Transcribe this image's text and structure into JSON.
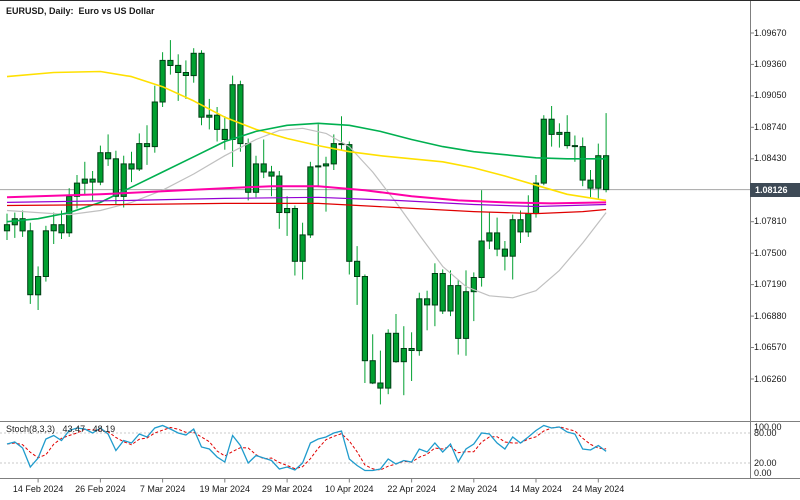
{
  "header": {
    "title": "EURUSD, Daily:  Euro vs US Dollar"
  },
  "price_axis": {
    "labels": [
      "1.09670",
      "1.09360",
      "1.09050",
      "1.08740",
      "1.08430",
      "1.07810",
      "1.07500",
      "1.07190",
      "1.06880",
      "1.06570",
      "1.06260"
    ],
    "current_price": "1.08126"
  },
  "stochastic": {
    "label": "Stoch(8,3,3)",
    "main_value": "43.47",
    "signal_value": "48.19",
    "axis_labels": [
      "100.00",
      "80.00",
      "20.00",
      "0.00"
    ],
    "levels": [
      80,
      20
    ],
    "range": [
      0,
      100
    ],
    "main_color": "#1F9BCC",
    "signal_color": "#E00000"
  },
  "date_axis": {
    "labels": [
      "14 Feb 2024",
      "26 Feb 2024",
      "7 Mar 2024",
      "19 Mar 2024",
      "29 Mar 2024",
      "10 Apr 2024",
      "22 Apr 2024",
      "2 May 2024",
      "14 May 2024",
      "24 May 2024"
    ],
    "tick_indices": [
      4,
      12,
      20,
      28,
      36,
      44,
      52,
      60,
      68,
      76
    ]
  },
  "colors": {
    "candle_fill": "#00A030",
    "candle_border": "#003d14",
    "candle_wick": "#00A030",
    "price_line": "#A6A6A6",
    "separator": "#7F7F7F",
    "level_line": "#C8C8C8",
    "badge_bg": "#3E4A56",
    "badge_text": "#FFFFFF"
  },
  "chart_data": {
    "type": "candlestick",
    "symbol": "EURUSD",
    "timeframe": "Daily",
    "description": "Euro vs US Dollar",
    "ylim": [
      1.05846,
      1.09847
    ],
    "current_price": 1.08126,
    "candles": [
      [
        1.0772,
        1.0789,
        1.0763,
        1.0778
      ],
      [
        1.0778,
        1.079,
        1.0765,
        1.0784
      ],
      [
        1.0784,
        1.0792,
        1.0766,
        1.0772
      ],
      [
        1.0772,
        1.078,
        1.07,
        1.0709
      ],
      [
        1.0709,
        1.0737,
        1.0694,
        1.0727
      ],
      [
        1.0727,
        1.0777,
        1.0722,
        1.0772
      ],
      [
        1.0772,
        1.079,
        1.0759,
        1.0778
      ],
      [
        1.0778,
        1.0792,
        1.0764,
        1.077
      ],
      [
        1.077,
        1.0814,
        1.0766,
        1.0806
      ],
      [
        1.0806,
        1.0827,
        1.0794,
        1.0819
      ],
      [
        1.0819,
        1.084,
        1.0808,
        1.0823
      ],
      [
        1.0823,
        1.0831,
        1.0801,
        1.082
      ],
      [
        1.082,
        1.0856,
        1.0817,
        1.0849
      ],
      [
        1.0849,
        1.0867,
        1.0836,
        1.0843
      ],
      [
        1.0843,
        1.0851,
        1.0798,
        1.0806
      ],
      [
        1.0806,
        1.0846,
        1.0795,
        1.0838
      ],
      [
        1.0838,
        1.085,
        1.082,
        1.0833
      ],
      [
        1.0833,
        1.0868,
        1.0831,
        1.0858
      ],
      [
        1.0858,
        1.0876,
        1.0837,
        1.0855
      ],
      [
        1.0855,
        1.0915,
        1.0849,
        1.0899
      ],
      [
        1.0899,
        1.0948,
        1.0894,
        1.094
      ],
      [
        1.094,
        1.096,
        1.0926,
        1.0935
      ],
      [
        1.0935,
        1.0946,
        1.09,
        1.0928
      ],
      [
        1.0928,
        1.094,
        1.0902,
        1.0925
      ],
      [
        1.0925,
        1.0952,
        1.0918,
        1.0947
      ],
      [
        1.0947,
        1.095,
        1.0876,
        1.0884
      ],
      [
        1.0884,
        1.0902,
        1.0872,
        1.0886
      ],
      [
        1.0886,
        1.0894,
        1.086,
        1.0872
      ],
      [
        1.0872,
        1.0885,
        1.0852,
        1.0862
      ],
      [
        1.0862,
        1.0925,
        1.0835,
        1.0916
      ],
      [
        1.0916,
        1.092,
        1.085,
        1.0858
      ],
      [
        1.0858,
        1.0863,
        1.0802,
        1.081
      ],
      [
        1.081,
        1.0846,
        1.0805,
        1.0838
      ],
      [
        1.0838,
        1.0862,
        1.0824,
        1.083
      ],
      [
        1.083,
        1.0836,
        1.0806,
        1.0826
      ],
      [
        1.0826,
        1.0831,
        1.0774,
        1.079
      ],
      [
        1.079,
        1.0806,
        1.0767,
        1.0794
      ],
      [
        1.0794,
        1.0797,
        1.0728,
        1.0742
      ],
      [
        1.0742,
        1.078,
        1.0724,
        1.0768
      ],
      [
        1.0768,
        1.084,
        1.0765,
        1.0835
      ],
      [
        1.0835,
        1.0877,
        1.0815,
        1.0836
      ],
      [
        1.0836,
        1.0845,
        1.0791,
        1.0838
      ],
      [
        1.0838,
        1.0867,
        1.0832,
        1.0858
      ],
      [
        1.0858,
        1.0885,
        1.0852,
        1.0857
      ],
      [
        1.0857,
        1.086,
        1.0729,
        1.0742
      ],
      [
        1.0742,
        1.0757,
        1.0699,
        1.0727
      ],
      [
        1.0727,
        1.0729,
        1.0622,
        1.0644
      ],
      [
        1.0644,
        1.067,
        1.0621,
        1.0622
      ],
      [
        1.0622,
        1.0654,
        1.0601,
        1.0617
      ],
      [
        1.0617,
        1.0675,
        1.0611,
        1.0671
      ],
      [
        1.0671,
        1.069,
        1.0642,
        1.0643
      ],
      [
        1.0643,
        1.0678,
        1.061,
        1.0656
      ],
      [
        1.0656,
        1.0672,
        1.0624,
        1.0654
      ],
      [
        1.0654,
        1.0711,
        1.0649,
        1.0705
      ],
      [
        1.0705,
        1.0713,
        1.0674,
        1.0699
      ],
      [
        1.0699,
        1.074,
        1.0678,
        1.073
      ],
      [
        1.073,
        1.0734,
        1.069,
        1.0693
      ],
      [
        1.0693,
        1.0733,
        1.0688,
        1.0718
      ],
      [
        1.0718,
        1.0724,
        1.065,
        1.0666
      ],
      [
        1.0666,
        1.0733,
        1.0649,
        1.0712
      ],
      [
        1.0712,
        1.0731,
        1.0683,
        1.0726
      ],
      [
        1.0726,
        1.0812,
        1.0717,
        1.0762
      ],
      [
        1.0762,
        1.0791,
        1.0754,
        1.077
      ],
      [
        1.077,
        1.0785,
        1.0747,
        1.0754
      ],
      [
        1.0754,
        1.0762,
        1.0733,
        1.0747
      ],
      [
        1.0747,
        1.0788,
        1.0724,
        1.0783
      ],
      [
        1.0783,
        1.0792,
        1.076,
        1.0771
      ],
      [
        1.0771,
        1.0807,
        1.0766,
        1.0789
      ],
      [
        1.0789,
        1.0827,
        1.0785,
        1.0819
      ],
      [
        1.0819,
        1.0886,
        1.0817,
        1.0882
      ],
      [
        1.0882,
        1.0895,
        1.0855,
        1.0867
      ],
      [
        1.0867,
        1.0878,
        1.0854,
        1.0869
      ],
      [
        1.0869,
        1.0886,
        1.0853,
        1.0856
      ],
      [
        1.0856,
        1.0866,
        1.084,
        1.0855
      ],
      [
        1.0855,
        1.0864,
        1.0816,
        1.0822
      ],
      [
        1.0822,
        1.0832,
        1.0805,
        1.0814
      ],
      [
        1.0814,
        1.0858,
        1.0804,
        1.0846
      ],
      [
        1.0846,
        1.0888,
        1.081,
        1.08126
      ]
    ],
    "overlays": [
      {
        "name": "ma-gray",
        "color": "#C0C0C0",
        "width": 1.2,
        "points": [
          [
            0,
            1.0792
          ],
          [
            4,
            1.079
          ],
          [
            8,
            1.0788
          ],
          [
            12,
            1.0792
          ],
          [
            16,
            1.08
          ],
          [
            20,
            1.0812
          ],
          [
            24,
            1.0828
          ],
          [
            28,
            1.0846
          ],
          [
            32,
            1.0862
          ],
          [
            35,
            1.0871
          ],
          [
            38,
            1.0873
          ],
          [
            41,
            1.0868
          ],
          [
            44,
            1.0855
          ],
          [
            47,
            1.083
          ],
          [
            50,
            1.08
          ],
          [
            53,
            1.0768
          ],
          [
            56,
            1.0737
          ],
          [
            59,
            1.0717
          ],
          [
            62,
            1.0708
          ],
          [
            65,
            1.0706
          ],
          [
            68,
            1.0713
          ],
          [
            71,
            1.0733
          ],
          [
            74,
            1.076
          ],
          [
            76,
            1.078
          ],
          [
            77,
            1.079
          ]
        ]
      },
      {
        "name": "ma-yellow",
        "color": "#FFE000",
        "width": 1.6,
        "points": [
          [
            0,
            1.0924
          ],
          [
            6,
            1.0928
          ],
          [
            12,
            1.0929
          ],
          [
            16,
            1.0924
          ],
          [
            20,
            1.0914
          ],
          [
            24,
            1.09
          ],
          [
            28,
            1.0884
          ],
          [
            32,
            1.0872
          ],
          [
            36,
            1.0863
          ],
          [
            40,
            1.0856
          ],
          [
            44,
            1.085
          ],
          [
            48,
            1.0846
          ],
          [
            52,
            1.0843
          ],
          [
            56,
            1.084
          ],
          [
            60,
            1.0834
          ],
          [
            64,
            1.0826
          ],
          [
            68,
            1.0817
          ],
          [
            72,
            1.0808
          ],
          [
            77,
            1.0802
          ]
        ]
      },
      {
        "name": "ma-green",
        "color": "#00B050",
        "width": 1.6,
        "points": [
          [
            0,
            1.0781
          ],
          [
            4,
            1.0784
          ],
          [
            8,
            1.079
          ],
          [
            12,
            1.08
          ],
          [
            16,
            1.0815
          ],
          [
            20,
            1.083
          ],
          [
            24,
            1.0845
          ],
          [
            28,
            1.086
          ],
          [
            32,
            1.087
          ],
          [
            36,
            1.0876
          ],
          [
            40,
            1.0878
          ],
          [
            44,
            1.0876
          ],
          [
            48,
            1.087
          ],
          [
            52,
            1.0862
          ],
          [
            56,
            1.0855
          ],
          [
            60,
            1.085
          ],
          [
            64,
            1.0847
          ],
          [
            68,
            1.0844
          ],
          [
            72,
            1.0843
          ],
          [
            77,
            1.0843
          ]
        ]
      },
      {
        "name": "ma-red",
        "color": "#E00000",
        "width": 1.2,
        "points": [
          [
            0,
            1.0797
          ],
          [
            16,
            1.0798
          ],
          [
            28,
            1.0799
          ],
          [
            40,
            1.0799
          ],
          [
            50,
            1.0795
          ],
          [
            60,
            1.0791
          ],
          [
            68,
            1.0789
          ],
          [
            74,
            1.0791
          ],
          [
            77,
            1.0793
          ]
        ]
      },
      {
        "name": "ma-violet",
        "color": "#9400D3",
        "width": 1.2,
        "points": [
          [
            0,
            1.08
          ],
          [
            16,
            1.0802
          ],
          [
            28,
            1.0804
          ],
          [
            40,
            1.0805
          ],
          [
            50,
            1.0802
          ],
          [
            60,
            1.0798
          ],
          [
            68,
            1.0796
          ],
          [
            77,
            1.0798
          ]
        ]
      },
      {
        "name": "ma-magenta",
        "color": "#FF00A8",
        "width": 2,
        "points": [
          [
            0,
            1.0805
          ],
          [
            12,
            1.0808
          ],
          [
            20,
            1.0811
          ],
          [
            28,
            1.0814
          ],
          [
            34,
            1.0816
          ],
          [
            40,
            1.0816
          ],
          [
            46,
            1.0812
          ],
          [
            52,
            1.0806
          ],
          [
            58,
            1.0802
          ],
          [
            64,
            1.08
          ],
          [
            70,
            1.0799
          ],
          [
            77,
            1.08
          ]
        ]
      }
    ],
    "stoch_k": [
      58,
      62,
      50,
      12,
      30,
      68,
      75,
      65,
      85,
      90,
      88,
      80,
      90,
      78,
      45,
      65,
      60,
      78,
      72,
      90,
      95,
      88,
      80,
      76,
      88,
      52,
      48,
      32,
      22,
      75,
      55,
      20,
      35,
      30,
      25,
      8,
      12,
      6,
      20,
      60,
      68,
      72,
      80,
      84,
      28,
      15,
      5,
      5,
      8,
      28,
      18,
      25,
      22,
      48,
      42,
      60,
      42,
      58,
      22,
      48,
      58,
      80,
      78,
      60,
      48,
      72,
      60,
      72,
      85,
      95,
      90,
      92,
      82,
      78,
      48,
      46,
      55,
      43.47
    ]
  }
}
